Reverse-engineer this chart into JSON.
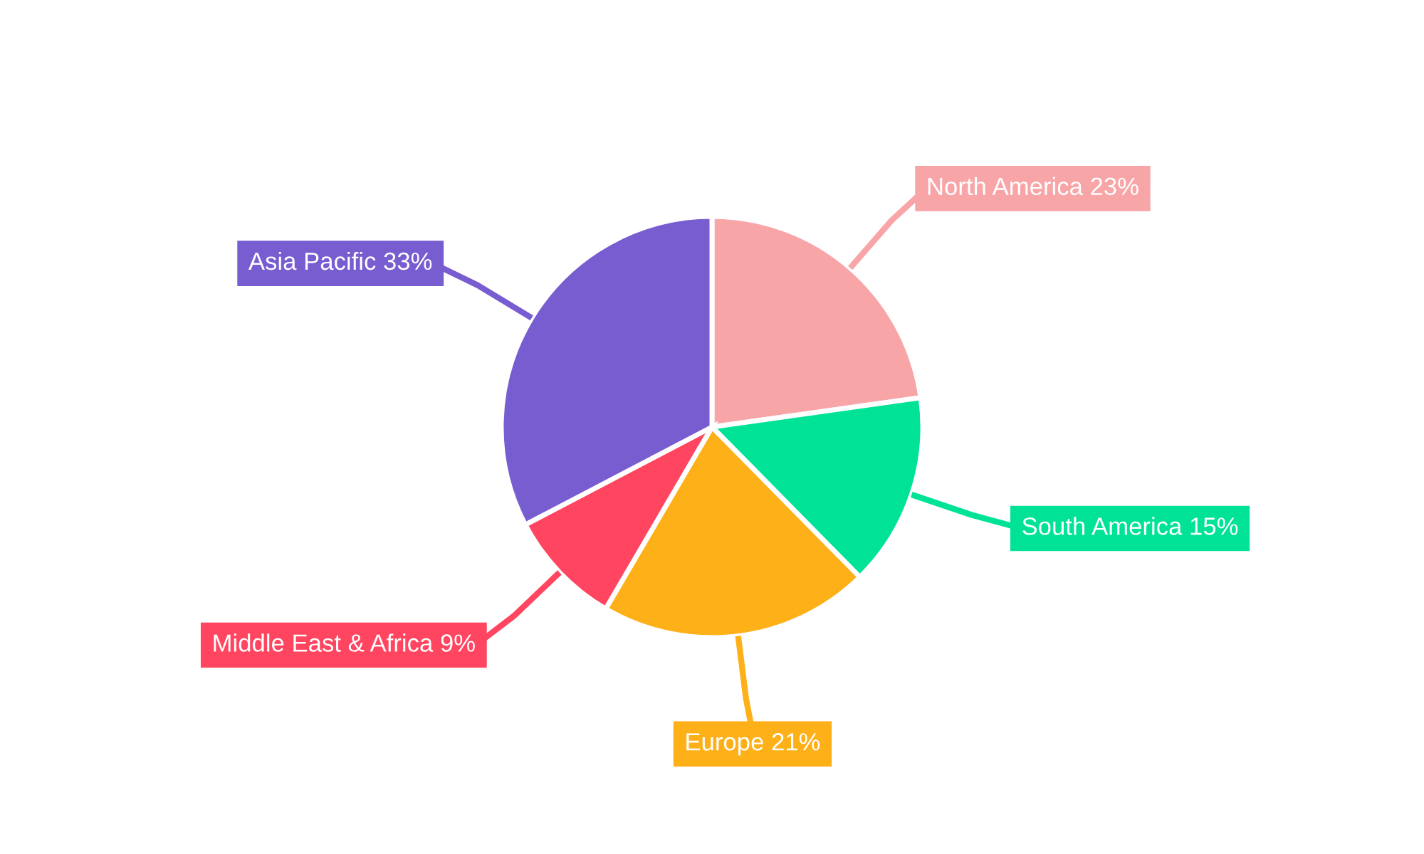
{
  "chart_data": {
    "type": "pie",
    "categories": [
      "North America",
      "South America",
      "Europe",
      "Middle East & Africa",
      "Asia Pacific"
    ],
    "values": [
      23,
      15,
      21,
      9,
      33
    ],
    "value_labels": [
      "23%",
      "15%",
      "21%",
      "9%",
      "33%"
    ],
    "colors": [
      "#f8a5a8",
      "#00e396",
      "#feb019",
      "#ff4560",
      "#775dd0"
    ],
    "legend": false
  }
}
